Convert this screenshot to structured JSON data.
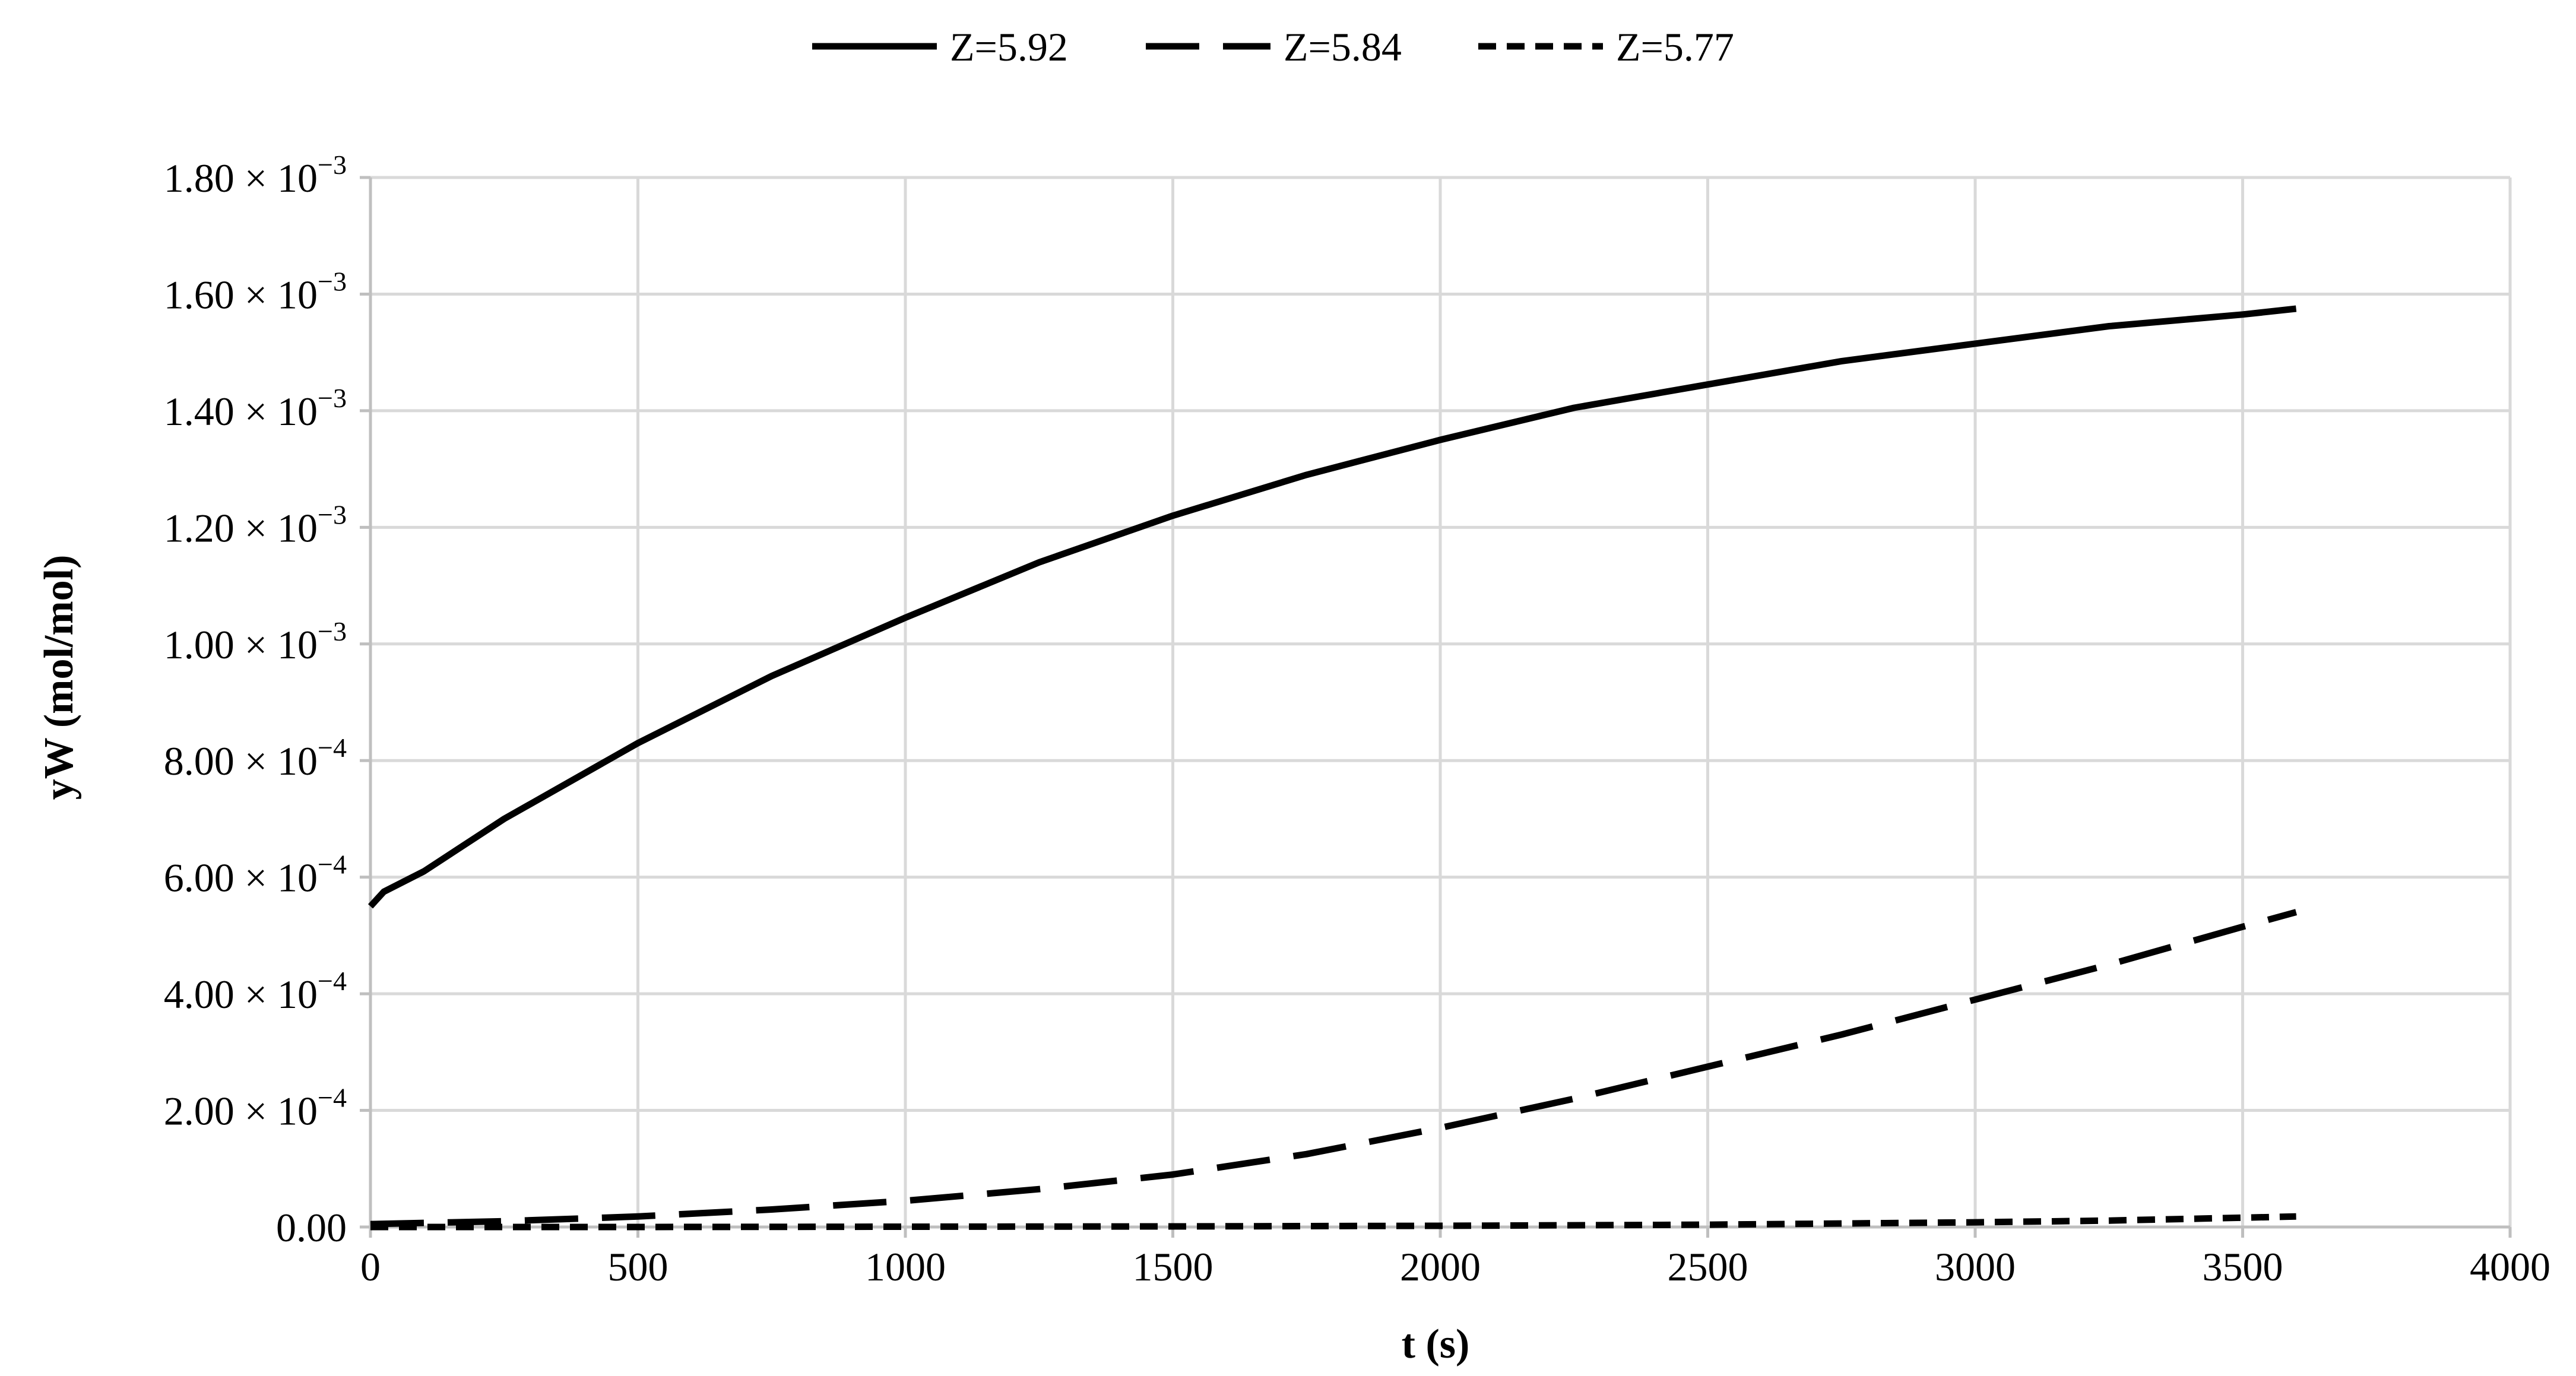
{
  "chart_data": {
    "type": "line",
    "title": "",
    "xlabel": "t (s)",
    "ylabel": "yW (mol/mol)",
    "xlim": [
      0,
      4000
    ],
    "ylim": [
      0,
      0.0018
    ],
    "grid": true,
    "legend_position": "top-center",
    "x_ticks": [
      0,
      500,
      1000,
      1500,
      2000,
      2500,
      3000,
      3500,
      4000
    ],
    "x_tick_labels": [
      "0",
      "500",
      "1000",
      "1500",
      "2000",
      "2500",
      "3000",
      "3500",
      "4000"
    ],
    "y_ticks": [
      0,
      0.0002,
      0.0004,
      0.0006,
      0.0008,
      0.001,
      0.0012,
      0.0014,
      0.0016,
      0.0018
    ],
    "y_tick_labels": [
      {
        "mantissa": "0.00",
        "exponent": ""
      },
      {
        "mantissa": "2.00 × 10",
        "exponent": "−4"
      },
      {
        "mantissa": "4.00 × 10",
        "exponent": "−4"
      },
      {
        "mantissa": "6.00 × 10",
        "exponent": "−4"
      },
      {
        "mantissa": "8.00 × 10",
        "exponent": "−4"
      },
      {
        "mantissa": "1.00 × 10",
        "exponent": "−3"
      },
      {
        "mantissa": "1.20 × 10",
        "exponent": "−3"
      },
      {
        "mantissa": "1.40 × 10",
        "exponent": "−3"
      },
      {
        "mantissa": "1.60 × 10",
        "exponent": "−3"
      },
      {
        "mantissa": "1.80 × 10",
        "exponent": "−3"
      }
    ],
    "series": [
      {
        "name": "Z=5.92",
        "line_style": "solid",
        "color": "#000000",
        "x": [
          0,
          25,
          100,
          250,
          500,
          750,
          1000,
          1250,
          1500,
          1750,
          2000,
          2250,
          2500,
          2750,
          3000,
          3250,
          3500,
          3600
        ],
        "y": [
          0.00055,
          0.000575,
          0.00061,
          0.0007,
          0.00083,
          0.000945,
          0.001045,
          0.00114,
          0.00122,
          0.00129,
          0.00135,
          0.001405,
          0.001445,
          0.001485,
          0.001515,
          0.001545,
          0.001565,
          0.001575
        ]
      },
      {
        "name": "Z=5.84",
        "line_style": "dashed",
        "color": "#000000",
        "x": [
          0,
          250,
          500,
          750,
          1000,
          1250,
          1500,
          1750,
          2000,
          2250,
          2500,
          2750,
          3000,
          3250,
          3500,
          3600
        ],
        "y": [
          5e-06,
          1e-05,
          1.8e-05,
          3e-05,
          4.5e-05,
          6.5e-05,
          9e-05,
          0.000125,
          0.00017,
          0.00022,
          0.000275,
          0.00033,
          0.00039,
          0.00045,
          0.000515,
          0.00054
        ]
      },
      {
        "name": "Z=5.77",
        "line_style": "dotted",
        "color": "#000000",
        "x": [
          0,
          500,
          1000,
          1500,
          2000,
          2500,
          3000,
          3250,
          3500,
          3600
        ],
        "y": [
          0.0,
          0.0,
          5e-07,
          1e-06,
          2e-06,
          4e-06,
          8e-06,
          1.1e-05,
          1.6e-05,
          1.8e-05
        ]
      }
    ]
  }
}
